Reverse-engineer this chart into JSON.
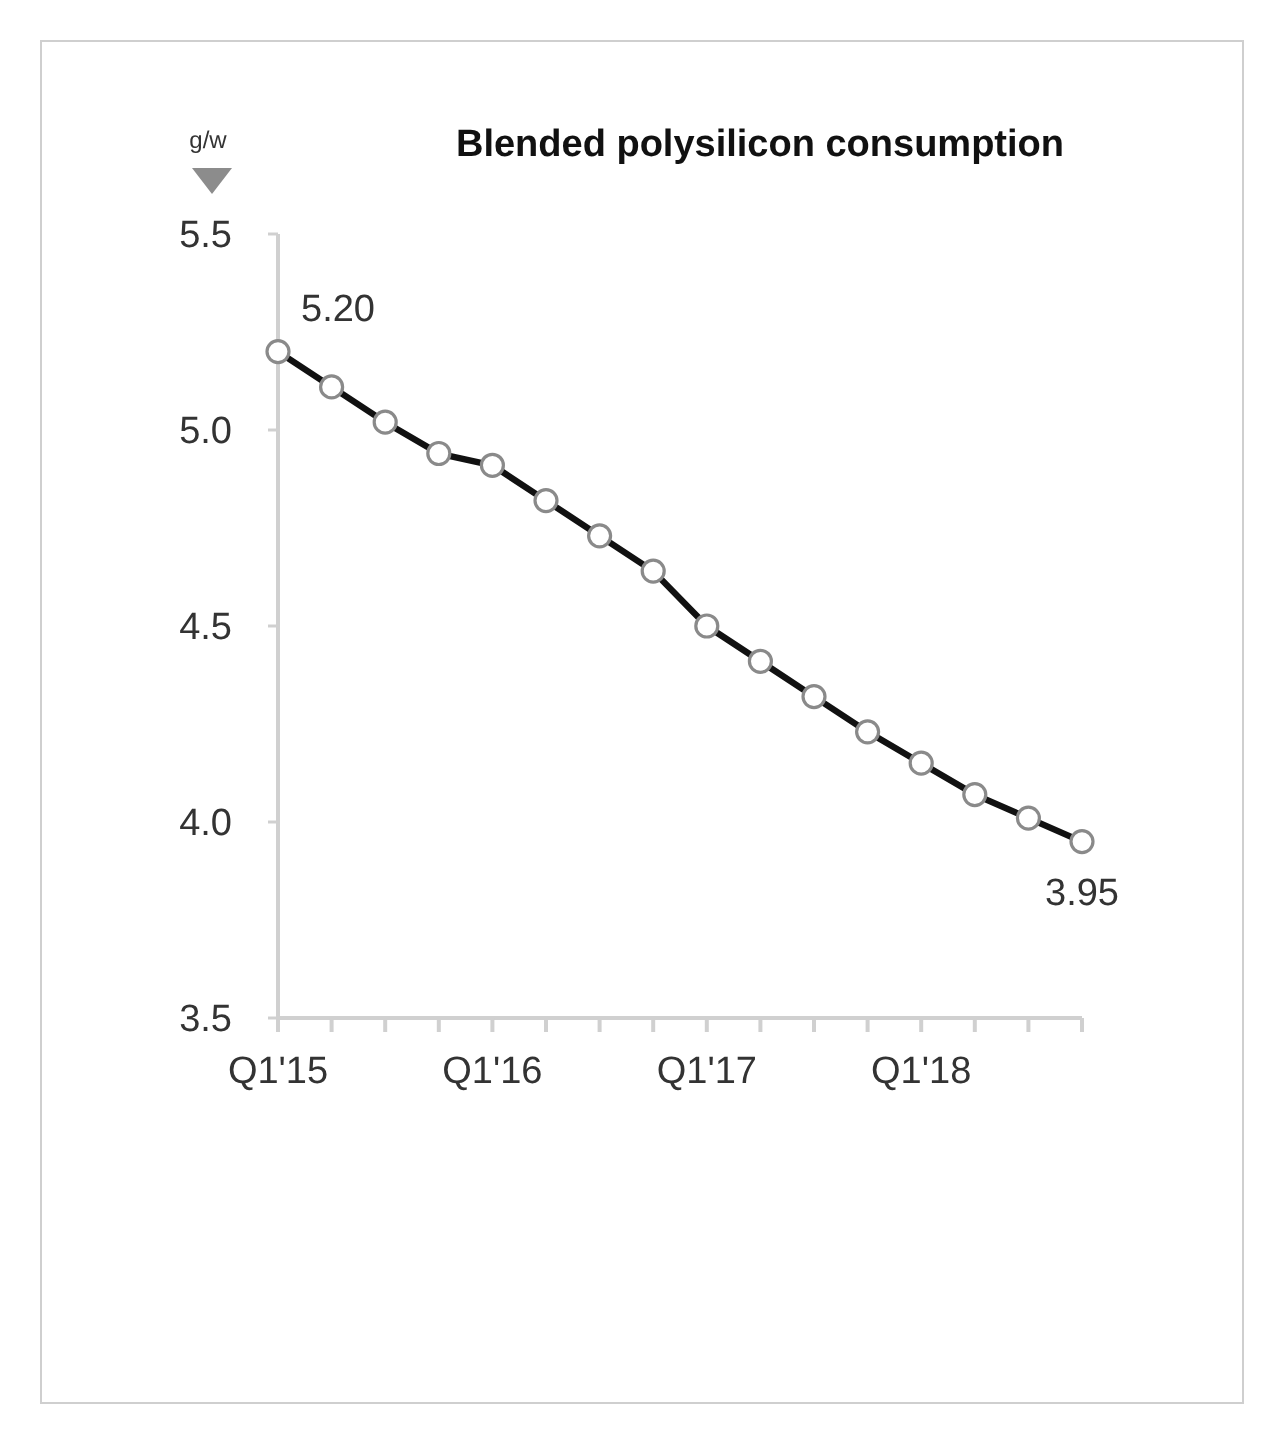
{
  "chart_data": {
    "type": "line",
    "title": "Blended polysilicon consumption",
    "ylabel": "g/w",
    "categories": [
      "Q1'15",
      null,
      null,
      null,
      "Q1'16",
      null,
      null,
      null,
      "Q1'17",
      null,
      null,
      null,
      "Q1'18",
      null,
      null,
      null
    ],
    "values": [
      5.2,
      5.11,
      5.02,
      4.94,
      4.91,
      4.82,
      4.73,
      4.64,
      4.5,
      4.41,
      4.32,
      4.23,
      4.15,
      4.07,
      4.01,
      3.95
    ],
    "value_labels": [
      "5.20",
      null,
      null,
      null,
      null,
      null,
      null,
      null,
      null,
      null,
      null,
      null,
      null,
      null,
      null,
      "3.95"
    ],
    "color": "#111111",
    "ylim": [
      3.5,
      5.5
    ],
    "yticks": [
      3.5,
      {
        "value": 4,
        "label": "4.0"
      },
      4.5,
      {
        "value": 5,
        "label": "5.0"
      },
      5.5
    ],
    "grid": false,
    "legend": false,
    "marker": "circle",
    "line_style": "solid"
  }
}
